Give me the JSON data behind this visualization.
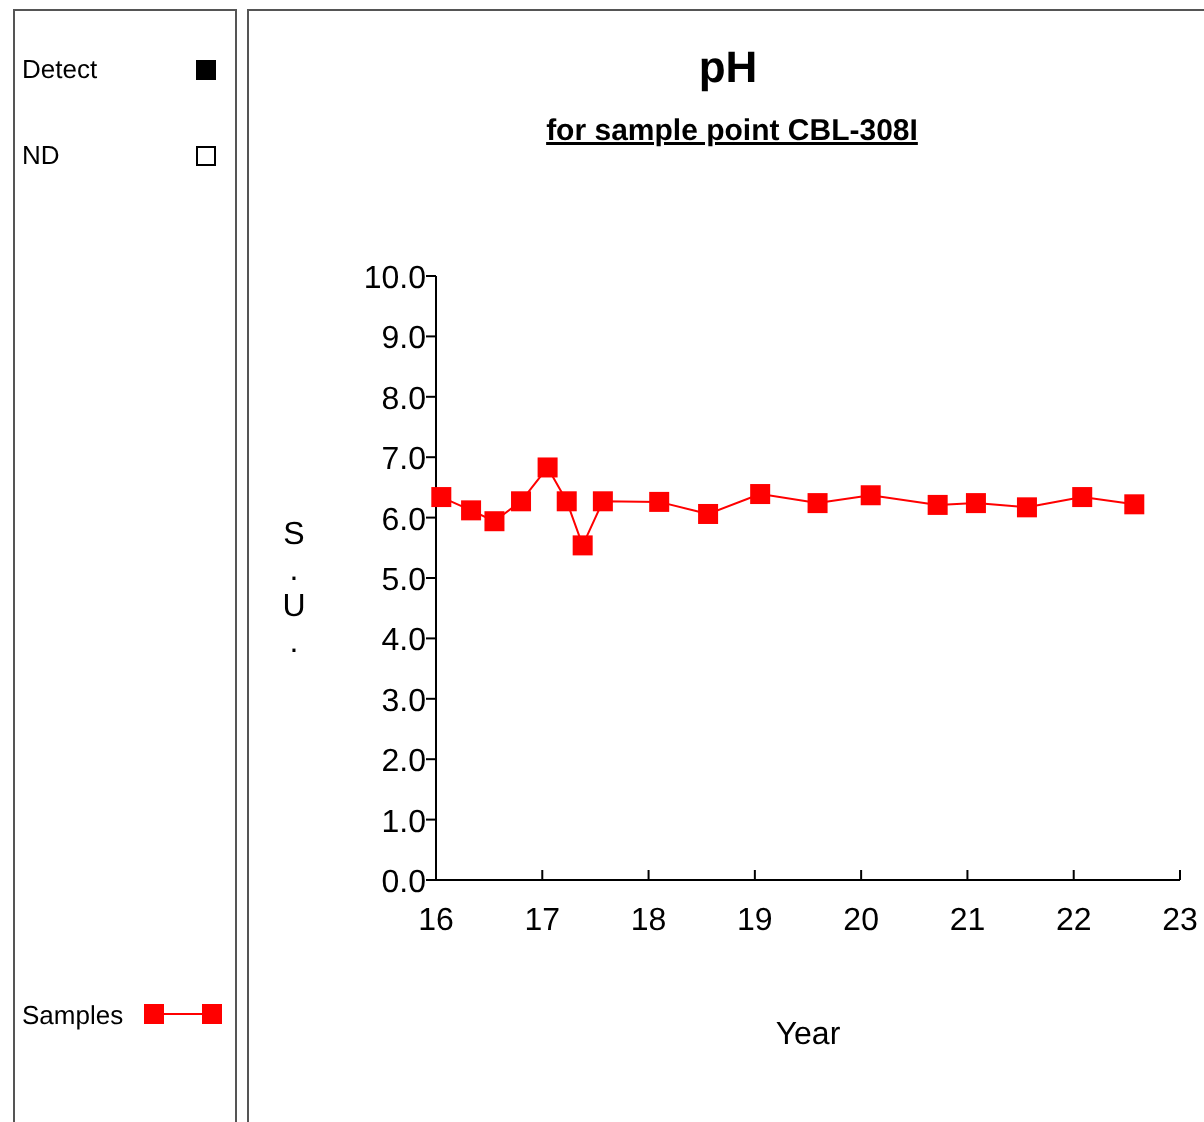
{
  "chart_data": {
    "type": "line",
    "title": "pH",
    "subtitle": "for sample point CBL-308I",
    "xlabel": "Year",
    "ylabel": "S.U.",
    "annotations": [
      "Detect",
      "ND"
    ],
    "xlim": [
      16,
      23
    ],
    "xticks": [
      16,
      17,
      18,
      19,
      20,
      21,
      22,
      23
    ],
    "ylim": [
      0,
      10
    ],
    "yticks": [
      {
        "value": 0,
        "label": "0.0"
      },
      {
        "value": 1,
        "label": "1.0"
      },
      {
        "value": 2,
        "label": "2.0"
      },
      {
        "value": 3,
        "label": "3.0"
      },
      {
        "value": 4,
        "label": "4.0"
      },
      {
        "value": 5,
        "label": "5.0"
      },
      {
        "value": 6,
        "label": "6.0"
      },
      {
        "value": 7,
        "label": "7.0"
      },
      {
        "value": 8,
        "label": "8.0"
      },
      {
        "value": 9,
        "label": "9.0"
      },
      {
        "value": 10,
        "label": "10.0"
      }
    ],
    "grid": false,
    "legend": "left",
    "marker": "square",
    "line_style": "solid",
    "series": [
      {
        "name": "Samples",
        "color": "#ff0000",
        "x": [
          16.05,
          16.33,
          16.55,
          16.8,
          17.05,
          17.23,
          17.38,
          17.57,
          18.1,
          18.56,
          19.05,
          19.59,
          20.09,
          20.72,
          21.08,
          21.56,
          22.08,
          22.57
        ],
        "values": [
          6.34,
          6.12,
          5.94,
          6.27,
          6.83,
          6.27,
          5.54,
          6.27,
          6.26,
          6.06,
          6.39,
          6.24,
          6.37,
          6.21,
          6.24,
          6.17,
          6.34,
          6.22
        ]
      }
    ]
  }
}
